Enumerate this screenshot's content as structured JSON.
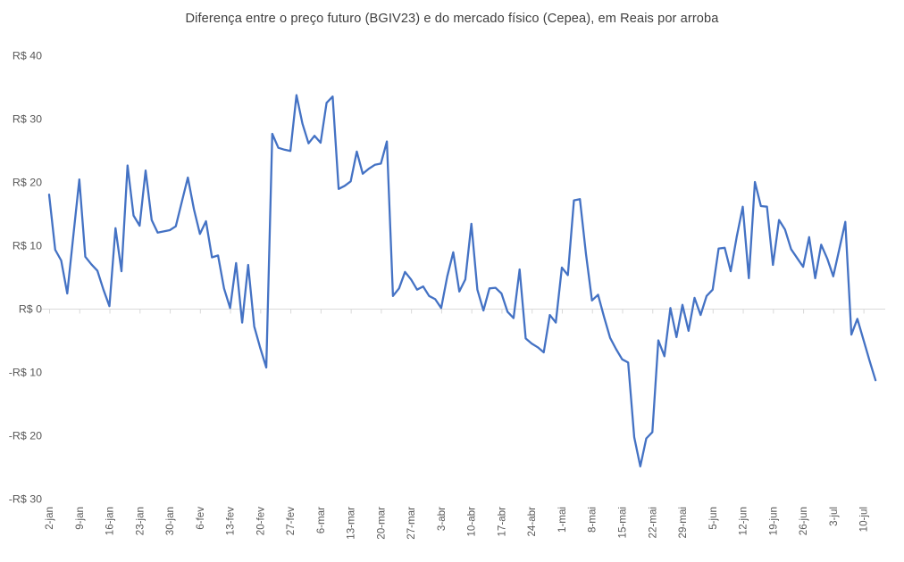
{
  "chart_data": {
    "type": "line",
    "title": "Diferença entre o preço futuro (BGIV23) e do mercado físico (Cepea), em Reais por arroba",
    "legend": "none",
    "grid": "zero-axis-only",
    "series_name": "diferenca-bgiv23-cepea",
    "colors": {
      "line": "#4472C4",
      "axis": "#D9D9D9",
      "tick_text": "#595959",
      "title_text": "#404040"
    },
    "ylabel": "",
    "xlabel": "",
    "ylim": [
      -30,
      40
    ],
    "y_tick_values": [
      40,
      30,
      20,
      10,
      0,
      -10,
      -20,
      -30
    ],
    "y_tick_labels": [
      "R$ 40",
      "R$ 30",
      "R$ 20",
      "R$ 10",
      "R$ 0",
      "-R$ 10",
      "-R$ 20",
      "-R$ 30"
    ],
    "x_tick_labels": [
      "2-jan",
      "9-jan",
      "16-jan",
      "23-jan",
      "30-jan",
      "6-fev",
      "13-fev",
      "20-fev",
      "27-fev",
      "6-mar",
      "13-mar",
      "20-mar",
      "27-mar",
      "3-abr",
      "10-abr",
      "17-abr",
      "24-abr",
      "1-mai",
      "8-mai",
      "15-mai",
      "22-mai",
      "29-mai",
      "5-jun",
      "12-jun",
      "19-jun",
      "26-jun",
      "3-jul",
      "10-jul"
    ],
    "points_per_tick": 5,
    "values": [
      18.0,
      9.3,
      7.6,
      2.4,
      11.4,
      20.4,
      8.2,
      7.0,
      6.0,
      3.0,
      0.4,
      12.7,
      5.9,
      22.6,
      14.7,
      13.1,
      21.8,
      14.0,
      12.0,
      12.2,
      12.4,
      13.0,
      16.9,
      20.7,
      15.7,
      11.8,
      13.8,
      8.1,
      8.4,
      3.2,
      0.1,
      7.2,
      -2.2,
      6.9,
      -2.8,
      -6.2,
      -9.3,
      27.6,
      25.4,
      25.1,
      24.9,
      33.7,
      29.2,
      26.1,
      27.3,
      26.2,
      32.5,
      33.5,
      18.9,
      19.4,
      20.1,
      24.8,
      21.3,
      22.1,
      22.7,
      22.9,
      26.4,
      2.0,
      3.2,
      5.8,
      4.6,
      3.0,
      3.5,
      2.0,
      1.5,
      0.1,
      5.1,
      8.9,
      2.7,
      4.6,
      13.4,
      3.0,
      -0.3,
      3.2,
      3.3,
      2.4,
      -0.5,
      -1.5,
      6.2,
      -4.7,
      -5.5,
      -6.1,
      -6.9,
      -1.0,
      -2.2,
      6.5,
      5.3,
      17.1,
      17.3,
      8.6,
      1.3,
      2.2,
      -1.3,
      -4.6,
      -6.4,
      -8.0,
      -8.5,
      -20.3,
      -24.9,
      -20.5,
      -19.5,
      -5.0,
      -7.5,
      0.1,
      -4.5,
      0.6,
      -3.5,
      1.7,
      -1.0,
      2.0,
      3.0,
      9.5,
      9.6,
      5.9,
      11.4,
      16.1,
      4.8,
      20.0,
      16.2,
      16.1,
      6.9,
      14.0,
      12.5,
      9.4,
      8.0,
      6.6,
      11.3,
      4.8,
      10.1,
      7.9,
      5.1,
      9.4,
      13.7,
      -4.1,
      -1.6,
      -4.9,
      -8.2,
      -11.3
    ]
  }
}
